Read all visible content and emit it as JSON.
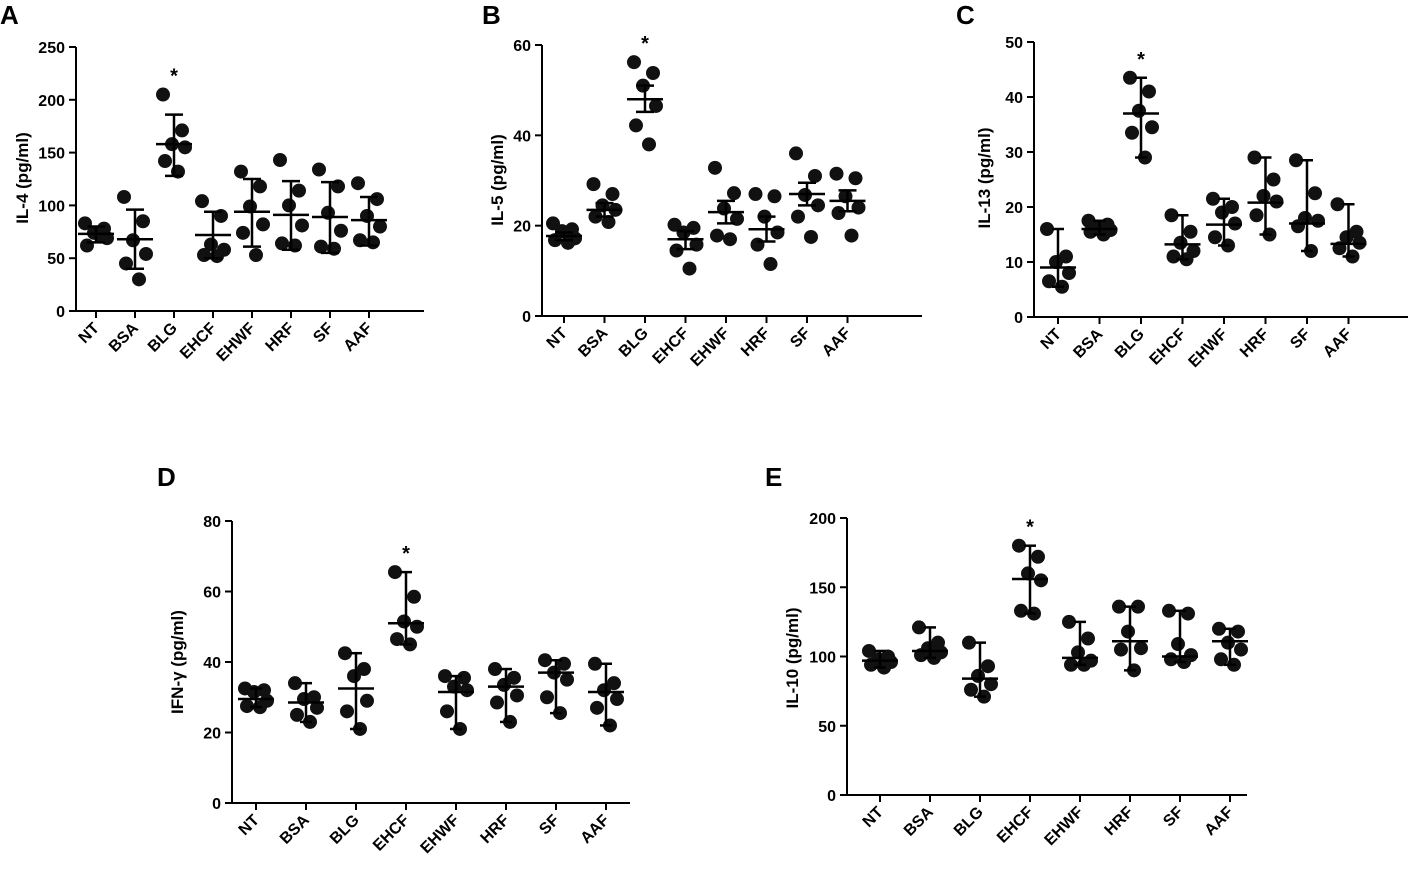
{
  "chart_data": [
    {
      "panel": "A",
      "type": "scatter",
      "ylabel": "IL-4 (pg/ml)",
      "ylim": [
        0,
        250
      ],
      "yticks": [
        0,
        50,
        100,
        150,
        200,
        250
      ],
      "categories": [
        "NT",
        "BSA",
        "BLG",
        "EHCF",
        "EHWF",
        "HRF",
        "SF",
        "AAF"
      ],
      "points": [
        [
          83,
          78,
          74,
          69,
          62,
          72
        ],
        [
          108,
          85,
          67,
          54,
          45,
          30
        ],
        [
          205,
          171,
          158,
          155,
          142,
          132
        ],
        [
          104,
          90,
          63,
          58,
          53,
          52
        ],
        [
          132,
          118,
          99,
          82,
          74,
          53
        ],
        [
          143,
          114,
          100,
          81,
          64,
          62
        ],
        [
          134,
          118,
          93,
          76,
          61,
          59
        ],
        [
          121,
          106,
          90,
          80,
          67,
          65
        ]
      ],
      "means": [
        73,
        68,
        158,
        72,
        94,
        91,
        89,
        86
      ],
      "error_upper": [
        80,
        96,
        186,
        94,
        125,
        123,
        122,
        108
      ],
      "error_lower": [
        65,
        40,
        128,
        50,
        61,
        58,
        55,
        62
      ],
      "error_caps": true,
      "significance": [
        {
          "category": "BLG",
          "label": "*"
        }
      ]
    },
    {
      "panel": "B",
      "type": "scatter",
      "ylabel": "IL-5 (pg/ml)",
      "ylim": [
        0,
        60
      ],
      "yticks": [
        0,
        20,
        40,
        60
      ],
      "categories": [
        "NT",
        "BSA",
        "BLG",
        "EHCF",
        "EHWF",
        "HRF",
        "SF",
        "AAF"
      ],
      "points": [
        [
          20.5,
          19.2,
          18.8,
          17.2,
          16.8,
          16.2
        ],
        [
          29.2,
          27.0,
          24.5,
          23.5,
          22.0,
          20.8
        ],
        [
          56.2,
          53.8,
          51.0,
          46.5,
          42.2,
          38.0
        ],
        [
          20.2,
          19.5,
          18.5,
          15.8,
          14.5,
          10.5
        ],
        [
          32.8,
          27.2,
          23.8,
          21.5,
          17.8,
          17.0
        ],
        [
          27.0,
          26.5,
          22.0,
          18.5,
          15.8,
          11.5
        ],
        [
          36.0,
          31.0,
          26.8,
          24.5,
          22.0,
          17.5
        ],
        [
          31.5,
          30.5,
          26.5,
          24.0,
          22.8,
          17.8
        ]
      ],
      "means": [
        17.7,
        23.5,
        48.0,
        17.0,
        23.0,
        19.2,
        27.0,
        25.5
      ],
      "error_upper": [
        18.5,
        25.0,
        51.0,
        18.8,
        25.5,
        22.0,
        29.5,
        27.8
      ],
      "error_lower": [
        16.8,
        22.0,
        45.2,
        14.8,
        20.5,
        16.5,
        24.5,
        23.2
      ],
      "error_caps": true,
      "significance": [
        {
          "category": "BLG",
          "label": "*"
        }
      ]
    },
    {
      "panel": "C",
      "type": "scatter",
      "ylabel": "IL-13 (pg/ml)",
      "ylim": [
        0,
        50
      ],
      "yticks": [
        0,
        10,
        20,
        30,
        40,
        50
      ],
      "categories": [
        "NT",
        "BSA",
        "BLG",
        "EHCF",
        "EHWF",
        "HRF",
        "SF",
        "AAF"
      ],
      "points": [
        [
          16.0,
          11.0,
          10.0,
          8.0,
          6.5,
          5.5
        ],
        [
          17.5,
          16.8,
          16.2,
          15.8,
          15.5,
          15.0
        ],
        [
          43.5,
          41.0,
          37.5,
          34.5,
          33.5,
          29.0
        ],
        [
          18.5,
          15.5,
          13.5,
          12.0,
          11.0,
          10.5
        ],
        [
          21.5,
          20.0,
          19.0,
          17.0,
          14.5,
          13.0
        ],
        [
          29.0,
          25.0,
          22.0,
          21.0,
          18.5,
          15.0
        ],
        [
          28.5,
          22.5,
          18.0,
          17.5,
          16.5,
          12.0
        ],
        [
          20.5,
          15.5,
          14.5,
          13.5,
          12.5,
          11.0
        ]
      ],
      "means": [
        9.0,
        16.0,
        37.0,
        13.2,
        16.8,
        20.8,
        17.0,
        13.3
      ],
      "error_upper": [
        16.0,
        17.5,
        43.5,
        18.5,
        21.5,
        29.0,
        28.5,
        20.5
      ],
      "error_lower": [
        5.5,
        15.0,
        29.0,
        10.5,
        13.0,
        15.0,
        12.0,
        11.0
      ],
      "error_caps": false,
      "significance": [
        {
          "category": "BLG",
          "label": "*"
        }
      ]
    },
    {
      "panel": "D",
      "type": "scatter",
      "ylabel": "IFN-γ (pg/ml)",
      "ylim": [
        0,
        80
      ],
      "yticks": [
        0,
        20,
        40,
        60,
        80
      ],
      "categories": [
        "NT",
        "BSA",
        "BLG",
        "EHCF",
        "EHWF",
        "HRF",
        "SF",
        "AAF"
      ],
      "points": [
        [
          32.5,
          32.0,
          31.5,
          29.0,
          27.5,
          27.2
        ],
        [
          34.0,
          30.0,
          29.5,
          27.0,
          25.0,
          23.0
        ],
        [
          42.5,
          38.0,
          36.0,
          29.0,
          26.0,
          21.0
        ],
        [
          65.5,
          58.5,
          51.5,
          50.0,
          46.5,
          45.0
        ],
        [
          36.0,
          35.5,
          33.0,
          32.0,
          26.0,
          21.0
        ],
        [
          38.0,
          35.5,
          33.5,
          30.5,
          28.5,
          23.0
        ],
        [
          40.5,
          39.5,
          37.0,
          35.0,
          30.0,
          25.5
        ],
        [
          39.5,
          34.0,
          32.0,
          29.5,
          27.0,
          22.0
        ]
      ],
      "means": [
        29.5,
        28.5,
        32.5,
        51.0,
        31.5,
        33.0,
        37.0,
        31.5
      ],
      "error_upper": [
        32.5,
        34.0,
        42.5,
        65.5,
        36.0,
        38.0,
        40.5,
        39.5
      ],
      "error_lower": [
        27.2,
        23.0,
        21.0,
        45.0,
        21.0,
        23.0,
        25.5,
        22.0
      ],
      "error_caps": false,
      "significance": [
        {
          "category": "EHCF",
          "label": "*"
        }
      ]
    },
    {
      "panel": "E",
      "type": "scatter",
      "ylabel": "IL-10 (pg/ml)",
      "ylim": [
        0,
        200
      ],
      "yticks": [
        0,
        50,
        100,
        150,
        200
      ],
      "categories": [
        "NT",
        "BSA",
        "BLG",
        "EHCF",
        "EHWF",
        "HRF",
        "SF",
        "AAF"
      ],
      "points": [
        [
          104,
          100,
          98,
          96,
          94,
          92
        ],
        [
          121,
          110,
          106,
          103,
          101,
          99
        ],
        [
          110,
          93,
          86,
          80,
          76,
          71
        ],
        [
          180,
          172,
          160,
          155,
          133,
          131
        ],
        [
          125,
          113,
          103,
          97,
          94,
          94
        ],
        [
          136,
          136,
          118,
          106,
          105,
          90
        ],
        [
          133,
          131,
          109,
          101,
          98,
          96
        ],
        [
          120,
          118,
          110,
          105,
          98,
          94
        ]
      ],
      "means": [
        97,
        104,
        84,
        156,
        99,
        111,
        100,
        111
      ],
      "error_upper": [
        104,
        121,
        110,
        180,
        125,
        136,
        133,
        120
      ],
      "error_lower": [
        92,
        99,
        71,
        131,
        94,
        90,
        96,
        94
      ],
      "error_caps": false,
      "significance": [
        {
          "category": "EHCF",
          "label": "*"
        }
      ]
    }
  ]
}
